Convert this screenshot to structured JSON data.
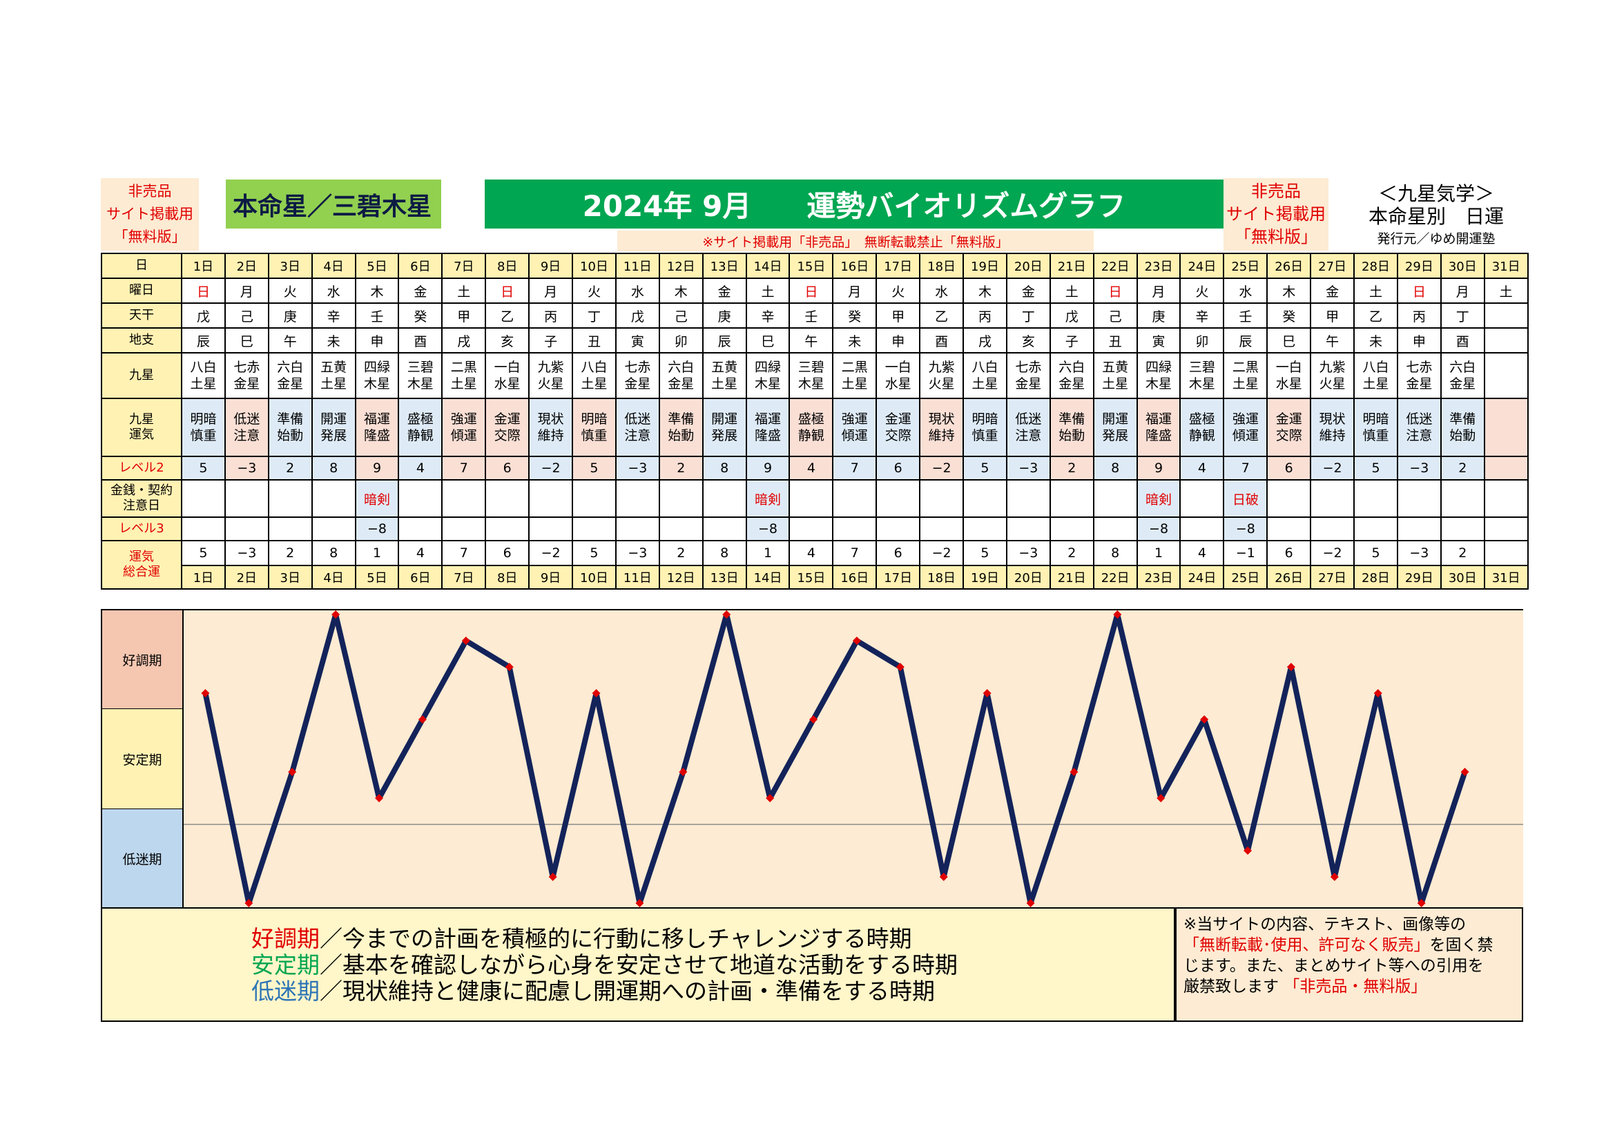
{
  "header": {
    "nonsale_left": [
      "非売品",
      "サイト掲載用",
      "「無料版」"
    ],
    "honmei": "本命星／三碧木星",
    "title_year_month": "2024年 9月",
    "title_main": "運勢バイオリズムグラフ",
    "nonsale_right": [
      "非売品",
      "サイト掲載用",
      "「無料版」"
    ],
    "kyusei_title": "＜九星気学＞",
    "kyusei_sub": "本命星別　日運",
    "publisher": "発行元／ゆめ開運塾",
    "notice": "※サイト掲載用「非売品」　無断転載禁止「無料版」"
  },
  "rows": {
    "day_label": "日",
    "weekday_label": "曜日",
    "tenkan_label": "天干",
    "chishi_label": "地支",
    "kyusei_label": "九星",
    "unki_label": [
      "九星",
      "運気"
    ],
    "level2_label": "レベル2",
    "kinsen_label": [
      "金銭・契約",
      "注意日"
    ],
    "level3_label": "レベル3",
    "sogo_label": [
      "運気",
      "総合運"
    ]
  },
  "days": [
    "1日",
    "2日",
    "3日",
    "4日",
    "5日",
    "6日",
    "7日",
    "8日",
    "9日",
    "10日",
    "11日",
    "12日",
    "13日",
    "14日",
    "15日",
    "16日",
    "17日",
    "18日",
    "19日",
    "20日",
    "21日",
    "22日",
    "23日",
    "24日",
    "25日",
    "26日",
    "27日",
    "28日",
    "29日",
    "30日",
    "31日"
  ],
  "weekdays": [
    "日",
    "月",
    "火",
    "水",
    "木",
    "金",
    "土",
    "日",
    "月",
    "火",
    "水",
    "木",
    "金",
    "土",
    "日",
    "月",
    "火",
    "水",
    "木",
    "金",
    "土",
    "日",
    "月",
    "火",
    "水",
    "木",
    "金",
    "土",
    "日",
    "月",
    "土"
  ],
  "sunday_indices": [
    0,
    7,
    14,
    21,
    28
  ],
  "tenkan": [
    "戊",
    "己",
    "庚",
    "辛",
    "壬",
    "癸",
    "甲",
    "乙",
    "丙",
    "丁",
    "戊",
    "己",
    "庚",
    "辛",
    "壬",
    "癸",
    "甲",
    "乙",
    "丙",
    "丁",
    "戊",
    "己",
    "庚",
    "辛",
    "壬",
    "癸",
    "甲",
    "乙",
    "丙",
    "丁",
    ""
  ],
  "chishi": [
    "辰",
    "巳",
    "午",
    "未",
    "申",
    "酉",
    "戌",
    "亥",
    "子",
    "丑",
    "寅",
    "卯",
    "辰",
    "巳",
    "午",
    "未",
    "申",
    "酉",
    "戌",
    "亥",
    "子",
    "丑",
    "寅",
    "卯",
    "辰",
    "巳",
    "午",
    "未",
    "申",
    "酉",
    ""
  ],
  "kyusei": [
    [
      "八白",
      "土星"
    ],
    [
      "七赤",
      "金星"
    ],
    [
      "六白",
      "金星"
    ],
    [
      "五黄",
      "土星"
    ],
    [
      "四緑",
      "木星"
    ],
    [
      "三碧",
      "木星"
    ],
    [
      "二黒",
      "土星"
    ],
    [
      "一白",
      "水星"
    ],
    [
      "九紫",
      "火星"
    ],
    [
      "八白",
      "土星"
    ],
    [
      "七赤",
      "金星"
    ],
    [
      "六白",
      "金星"
    ],
    [
      "五黄",
      "土星"
    ],
    [
      "四緑",
      "木星"
    ],
    [
      "三碧",
      "木星"
    ],
    [
      "二黒",
      "土星"
    ],
    [
      "一白",
      "水星"
    ],
    [
      "九紫",
      "火星"
    ],
    [
      "八白",
      "土星"
    ],
    [
      "七赤",
      "金星"
    ],
    [
      "六白",
      "金星"
    ],
    [
      "五黄",
      "土星"
    ],
    [
      "四緑",
      "木星"
    ],
    [
      "三碧",
      "木星"
    ],
    [
      "二黒",
      "土星"
    ],
    [
      "一白",
      "水星"
    ],
    [
      "九紫",
      "火星"
    ],
    [
      "八白",
      "土星"
    ],
    [
      "七赤",
      "金星"
    ],
    [
      "六白",
      "金星"
    ],
    [
      "",
      ""
    ]
  ],
  "unki": [
    [
      "明暗",
      "慎重"
    ],
    [
      "低迷",
      "注意"
    ],
    [
      "準備",
      "始動"
    ],
    [
      "開運",
      "発展"
    ],
    [
      "福運",
      "隆盛"
    ],
    [
      "盛極",
      "静観"
    ],
    [
      "強運",
      "傾運"
    ],
    [
      "金運",
      "交際"
    ],
    [
      "現状",
      "維持"
    ],
    [
      "明暗",
      "慎重"
    ],
    [
      "低迷",
      "注意"
    ],
    [
      "準備",
      "始動"
    ],
    [
      "開運",
      "発展"
    ],
    [
      "福運",
      "隆盛"
    ],
    [
      "盛極",
      "静観"
    ],
    [
      "強運",
      "傾運"
    ],
    [
      "金運",
      "交際"
    ],
    [
      "現状",
      "維持"
    ],
    [
      "明暗",
      "慎重"
    ],
    [
      "低迷",
      "注意"
    ],
    [
      "準備",
      "始動"
    ],
    [
      "開運",
      "発展"
    ],
    [
      "福運",
      "隆盛"
    ],
    [
      "盛極",
      "静観"
    ],
    [
      "強運",
      "傾運"
    ],
    [
      "金運",
      "交際"
    ],
    [
      "現状",
      "維持"
    ],
    [
      "明暗",
      "慎重"
    ],
    [
      "低迷",
      "注意"
    ],
    [
      "準備",
      "始動"
    ],
    [
      "",
      ""
    ]
  ],
  "level2": [
    "5",
    "−3",
    "2",
    "8",
    "9",
    "4",
    "7",
    "6",
    "−2",
    "5",
    "−3",
    "2",
    "8",
    "9",
    "4",
    "7",
    "6",
    "−2",
    "5",
    "−3",
    "2",
    "8",
    "9",
    "4",
    "7",
    "6",
    "−2",
    "5",
    "−3",
    "2",
    ""
  ],
  "kinsen": [
    "",
    "",
    "",
    "",
    "暗剣",
    "",
    "",
    "",
    "",
    "",
    "",
    "",
    "",
    "暗剣",
    "",
    "",
    "",
    "",
    "",
    "",
    "",
    "",
    "暗剣",
    "",
    "日破",
    "",
    "",
    "",
    "",
    "",
    ""
  ],
  "level3": [
    "",
    "",
    "",
    "",
    "−8",
    "",
    "",
    "",
    "",
    "",
    "",
    "",
    "",
    "−8",
    "",
    "",
    "",
    "",
    "",
    "",
    "",
    "",
    "−8",
    "",
    "−8",
    "",
    "",
    "",
    "",
    "",
    ""
  ],
  "sogo": [
    "5",
    "−3",
    "2",
    "8",
    "1",
    "4",
    "7",
    "6",
    "−2",
    "5",
    "−3",
    "2",
    "8",
    "1",
    "4",
    "7",
    "6",
    "−2",
    "5",
    "−3",
    "2",
    "8",
    "1",
    "4",
    "−1",
    "6",
    "−2",
    "5",
    "−3",
    "2",
    ""
  ],
  "bands": {
    "good": "好調期",
    "stable": "安定期",
    "low": "低迷期"
  },
  "legend": {
    "good_term": "好調期",
    "good_text": "／今までの計画を積極的に行動に移しチャレンジする時期",
    "stable_term": "安定期",
    "stable_text": "／基本を確認しながら心身を安定させて地道な活動をする時期",
    "low_term": "低迷期",
    "low_text": "／現状維持と健康に配慮し開運期への計画・準備をする時期"
  },
  "copyright": {
    "line1": "※当サイトの内容、テキスト、画像等の",
    "line2_red": "「無断転載･使用、許可なく販売」",
    "line2_rest": "を固く禁",
    "line3": "じます。また、まとめサイト等への引用を",
    "line4": "厳禁致します",
    "line4_red": "「非売品・無料版」"
  },
  "colors": {
    "line": "#13235a",
    "marker": "#e00000",
    "good_band": "#f5c6b0",
    "stable_band": "#fff2b3",
    "low_band": "#bdd7ee",
    "title_green": "#00a651",
    "honmei_green": "#92d050"
  },
  "chart_data": {
    "type": "line",
    "x": [
      1,
      2,
      3,
      4,
      5,
      6,
      7,
      8,
      9,
      10,
      11,
      12,
      13,
      14,
      15,
      16,
      17,
      18,
      19,
      20,
      21,
      22,
      23,
      24,
      25,
      26,
      27,
      28,
      29,
      30
    ],
    "categories": [
      "1日",
      "2日",
      "3日",
      "4日",
      "5日",
      "6日",
      "7日",
      "8日",
      "9日",
      "10日",
      "11日",
      "12日",
      "13日",
      "14日",
      "15日",
      "16日",
      "17日",
      "18日",
      "19日",
      "20日",
      "21日",
      "22日",
      "23日",
      "24日",
      "25日",
      "26日",
      "27日",
      "28日",
      "29日",
      "30日",
      "31日"
    ],
    "series": [
      {
        "values": [
          5,
          -3,
          2,
          8,
          1,
          4,
          7,
          6,
          -2,
          5,
          -3,
          2,
          8,
          1,
          4,
          7,
          6,
          -2,
          5,
          -3,
          2,
          8,
          1,
          4,
          -1,
          6,
          -2,
          5,
          -3,
          2
        ]
      }
    ],
    "ylim": [
      -3,
      8
    ],
    "bands": [
      {
        "label": "好調期"
      },
      {
        "label": "安定期"
      },
      {
        "label": "低迷期"
      }
    ],
    "reference_line_y": 0,
    "grid": false
  }
}
